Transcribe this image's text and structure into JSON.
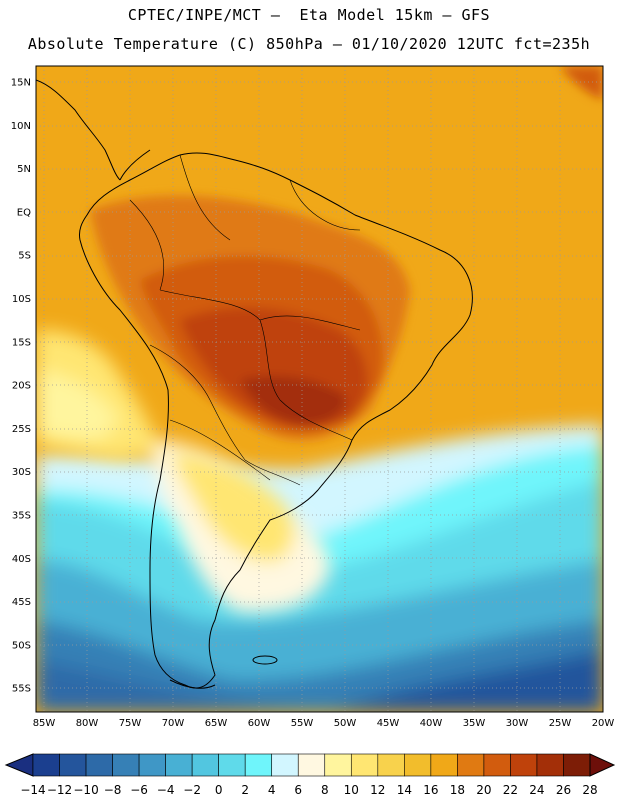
{
  "header": {
    "line1": "CPTEC/INPE/MCT –  Eta Model 15km – GFS",
    "line2": "Absolute Temperature (C) 850hPa – 01/10/2020 12UTC fct=235h"
  },
  "map": {
    "lat_ticks": [
      "15N",
      "10N",
      "5N",
      "EQ",
      "5S",
      "10S",
      "15S",
      "20S",
      "25S",
      "30S",
      "35S",
      "40S",
      "45S",
      "50S",
      "55S"
    ],
    "lon_ticks": [
      "85W",
      "80W",
      "75W",
      "70W",
      "65W",
      "60W",
      "55W",
      "50W",
      "45W",
      "40W",
      "35W",
      "30W",
      "25W",
      "20W"
    ],
    "background_color": "#f0a818"
  },
  "colorbar": {
    "labels": [
      "-14",
      "-12",
      "-10",
      "-8",
      "-6",
      "-4",
      "-2",
      "0",
      "2",
      "4",
      "6",
      "8",
      "10",
      "12",
      "14",
      "16",
      "18",
      "20",
      "22",
      "24",
      "26",
      "28"
    ],
    "colors": [
      "#1b3f8f",
      "#24559c",
      "#2d6aa8",
      "#3680b6",
      "#3f97c6",
      "#48b0d4",
      "#52c6e0",
      "#5fdaea",
      "#6ff5fb",
      "#d2f6ff",
      "#fff8e1",
      "#fff59e",
      "#ffe672",
      "#f8d24c",
      "#f2bd2c",
      "#f0a818",
      "#e07a12",
      "#d25c0e",
      "#bf420b",
      "#a32f08",
      "#7d1d06"
    ],
    "under_color": "#1a2f80",
    "over_color": "#6d0f0a"
  }
}
